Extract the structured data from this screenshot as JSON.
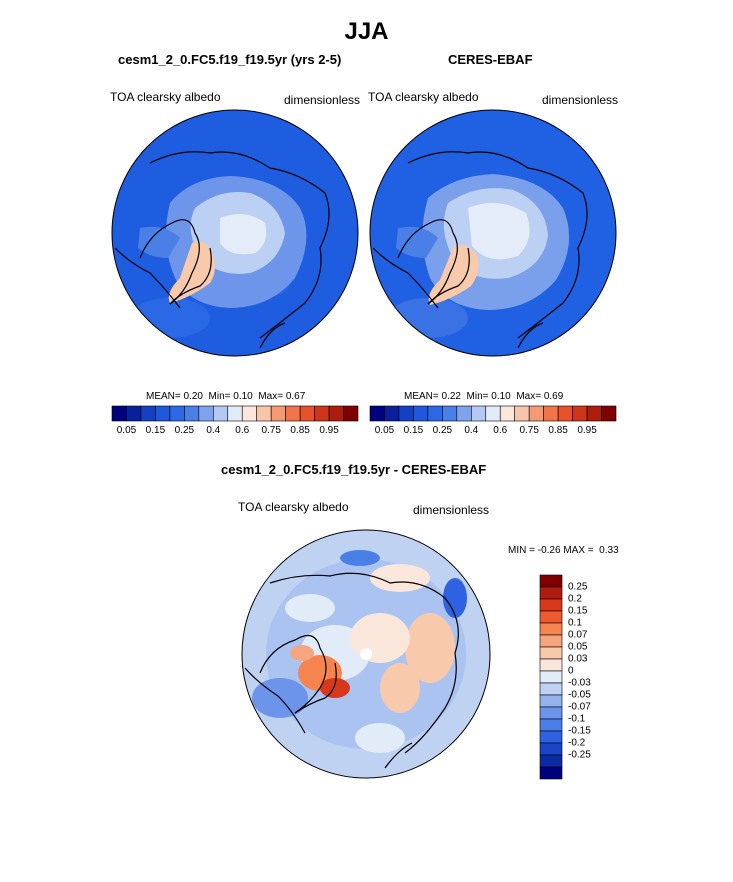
{
  "figure": {
    "season_title": "JJA"
  },
  "panels": [
    {
      "title": "cesm1_2_0.FC5.f19_f19.5yr (yrs 2-5)",
      "variable": "TOA clearsky albedo",
      "units": "dimensionless",
      "stats": {
        "mean_label": "MEAN=",
        "mean": "0.20",
        "min_label": "Min=",
        "min": "0.10",
        "max_label": "Max=",
        "max": "0.67"
      }
    },
    {
      "title": "CERES-EBAF",
      "variable": "TOA clearsky albedo",
      "units": "dimensionless",
      "stats": {
        "mean_label": "MEAN=",
        "mean": "0.22",
        "min_label": "Min=",
        "min": "0.10",
        "max_label": "Max=",
        "max": "0.69"
      }
    },
    {
      "title": "cesm1_2_0.FC5.f19_f19.5yr - CERES-EBAF",
      "variable": "TOA clearsky albedo",
      "units": "dimensionless",
      "stats": {
        "min_label": "MIN =",
        "min": "-0.26",
        "max_label": "MAX =",
        "max": "0.33"
      }
    }
  ],
  "colorbar_abs": {
    "colors": [
      "#00007f",
      "#0a1f9e",
      "#1540c4",
      "#1e58dc",
      "#2b68e6",
      "#4a7fe8",
      "#7fa2ec",
      "#b3c8f2",
      "#e2ecf8",
      "#fbe6dc",
      "#f8c4aa",
      "#f59a75",
      "#f2744a",
      "#e8522a",
      "#cf3518",
      "#ad1c0d",
      "#7f0000"
    ],
    "labels": [
      "0.05",
      "0.15",
      "0.25",
      "0.4",
      "0.6",
      "0.75",
      "0.85",
      "0.95"
    ]
  },
  "colorbar_diff": {
    "colors": [
      "#7f0000",
      "#b01c0c",
      "#d8381a",
      "#ee5a2e",
      "#f58450",
      "#f6a67e",
      "#f9c9ac",
      "#fbe6dc",
      "#e2ecf8",
      "#bfd2f2",
      "#95b3ee",
      "#6c94ea",
      "#4a7fe8",
      "#2d62e2",
      "#1a45c8",
      "#0d2aa6",
      "#00007f"
    ],
    "labels": [
      "0.25",
      "0.2",
      "0.15",
      "0.1",
      "0.07",
      "0.05",
      "0.03",
      "0",
      "-0.03",
      "-0.05",
      "-0.07",
      "-0.1",
      "-0.15",
      "-0.2",
      "-0.25"
    ]
  }
}
